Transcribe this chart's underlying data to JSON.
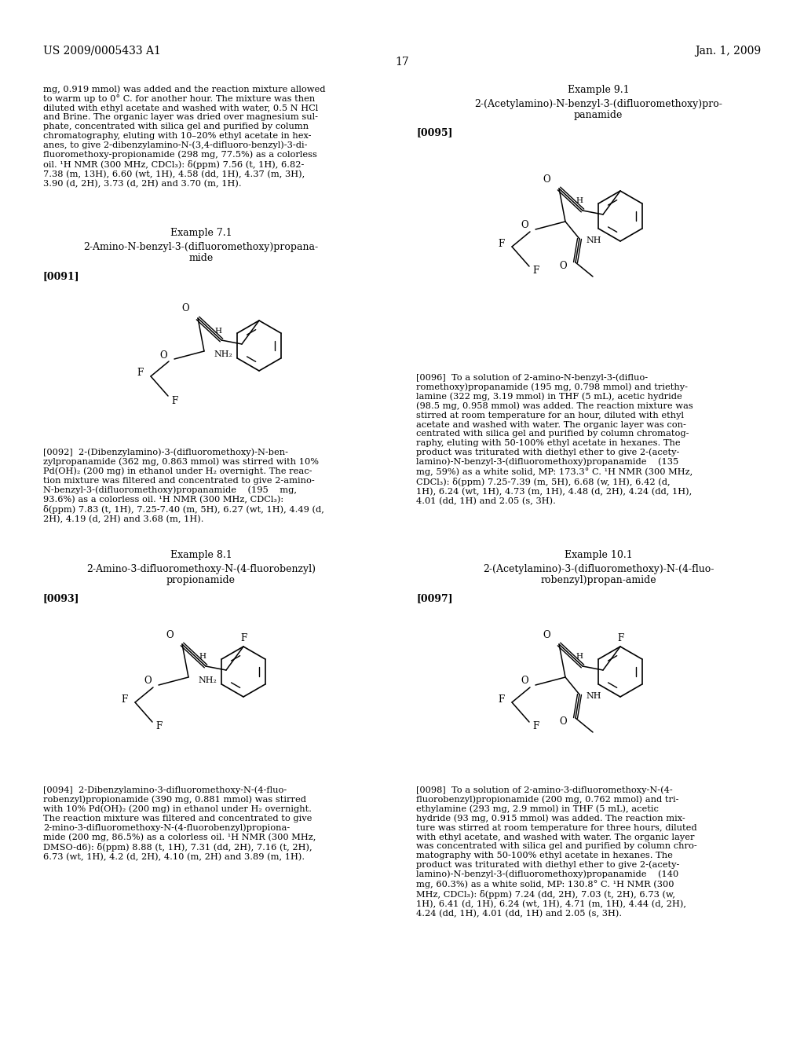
{
  "bg_color": "#ffffff",
  "header_left": "US 2009/0005433 A1",
  "header_right": "Jan. 1, 2009",
  "page_number": "17",
  "font_size_body": 8.2,
  "font_size_header": 10,
  "font_size_example": 9.0,
  "font_size_ref": 9.0,
  "font_size_atom": 7.5,
  "text_color": "#000000"
}
